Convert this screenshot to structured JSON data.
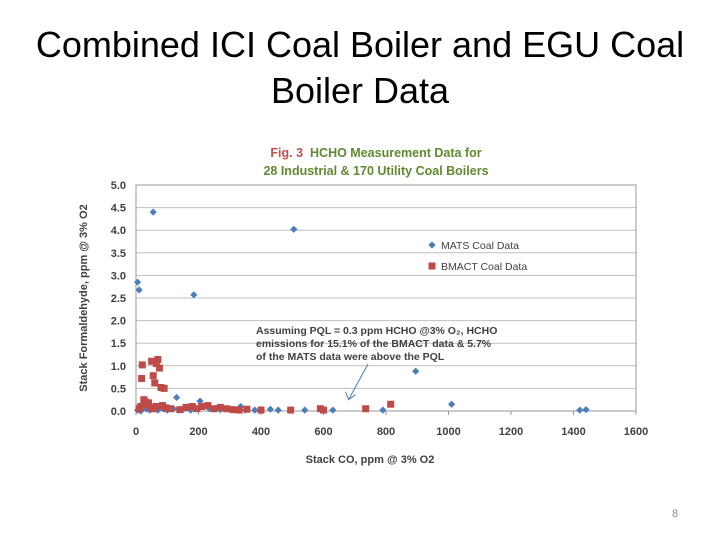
{
  "slide": {
    "title_line1": "Combined ICI Coal Boiler and EGU Coal",
    "title_line2": "Boiler Data",
    "page_number": "8"
  },
  "chart_data": {
    "type": "scatter",
    "title_prefix": "Fig. 3",
    "title_line1": "HCHO Measurement Data for",
    "title_line2": "28 Industrial & 170 Utility Coal Boilers",
    "xlabel": "Stack CO, ppm @ 3% O2",
    "ylabel": "Stack Formaldehyde, ppm @ 3% O2",
    "xlim": [
      0,
      1600
    ],
    "ylim": [
      0,
      5.0
    ],
    "x_ticks": [
      "0",
      "200",
      "400",
      "600",
      "800",
      "1000",
      "1200",
      "1400",
      "1600"
    ],
    "y_ticks": [
      "0.0",
      "0.5",
      "1.0",
      "1.5",
      "2.0",
      "2.5",
      "3.0",
      "3.5",
      "4.0",
      "4.5",
      "5.0"
    ],
    "grid": true,
    "legend_position": "right",
    "annotation_lines": [
      "Assuming PQL = 0.3 ppm HCHO @3% O₂, HCHO",
      "emissions for 15.1% of the BMACT data & 5.7%",
      "of the MATS data were above the PQL"
    ],
    "colors": {
      "mats": "#4a7ebb",
      "bmact": "#be4b48",
      "fig_label": "#c0504d",
      "title": "#5f8a2f",
      "text": "#404040"
    },
    "series": [
      {
        "name": "MATS Coal Data",
        "marker": "diamond",
        "points": [
          [
            5,
            2.85
          ],
          [
            10,
            2.68
          ],
          [
            55,
            4.4
          ],
          [
            185,
            2.57
          ],
          [
            505,
            4.02
          ],
          [
            895,
            0.88
          ],
          [
            1010,
            0.15
          ],
          [
            1420,
            0.02
          ],
          [
            1440,
            0.03
          ],
          [
            5,
            0.02
          ],
          [
            10,
            0.05
          ],
          [
            15,
            0.0
          ],
          [
            20,
            0.03
          ],
          [
            25,
            0.08
          ],
          [
            35,
            0.04
          ],
          [
            45,
            0.02
          ],
          [
            50,
            0.1
          ],
          [
            60,
            0.05
          ],
          [
            70,
            0.02
          ],
          [
            80,
            0.08
          ],
          [
            90,
            0.04
          ],
          [
            100,
            0.02
          ],
          [
            120,
            0.05
          ],
          [
            130,
            0.3
          ],
          [
            150,
            0.03
          ],
          [
            175,
            0.02
          ],
          [
            205,
            0.22
          ],
          [
            235,
            0.05
          ],
          [
            270,
            0.03
          ],
          [
            300,
            0.04
          ],
          [
            335,
            0.1
          ],
          [
            350,
            0.02
          ],
          [
            380,
            0.02
          ],
          [
            400,
            0.03
          ],
          [
            430,
            0.04
          ],
          [
            455,
            0.02
          ],
          [
            540,
            0.02
          ],
          [
            600,
            0.03
          ],
          [
            630,
            0.02
          ],
          [
            790,
            0.02
          ]
        ]
      },
      {
        "name": "BMACT Coal Data",
        "marker": "square",
        "points": [
          [
            18,
            0.72
          ],
          [
            20,
            1.02
          ],
          [
            25,
            0.25
          ],
          [
            30,
            0.2
          ],
          [
            40,
            0.18
          ],
          [
            50,
            1.1
          ],
          [
            55,
            0.78
          ],
          [
            60,
            0.62
          ],
          [
            65,
            1.05
          ],
          [
            70,
            1.14
          ],
          [
            75,
            0.95
          ],
          [
            80,
            0.52
          ],
          [
            90,
            0.5
          ],
          [
            10,
            0.05
          ],
          [
            15,
            0.1
          ],
          [
            35,
            0.15
          ],
          [
            45,
            0.08
          ],
          [
            55,
            0.05
          ],
          [
            65,
            0.1
          ],
          [
            85,
            0.12
          ],
          [
            95,
            0.07
          ],
          [
            110,
            0.05
          ],
          [
            140,
            0.03
          ],
          [
            160,
            0.08
          ],
          [
            180,
            0.1
          ],
          [
            195,
            0.05
          ],
          [
            210,
            0.1
          ],
          [
            230,
            0.12
          ],
          [
            250,
            0.05
          ],
          [
            270,
            0.08
          ],
          [
            290,
            0.05
          ],
          [
            310,
            0.03
          ],
          [
            330,
            0.02
          ],
          [
            355,
            0.04
          ],
          [
            400,
            0.02
          ],
          [
            495,
            0.02
          ],
          [
            590,
            0.05
          ],
          [
            600,
            0.02
          ],
          [
            735,
            0.05
          ],
          [
            815,
            0.15
          ]
        ]
      }
    ]
  }
}
